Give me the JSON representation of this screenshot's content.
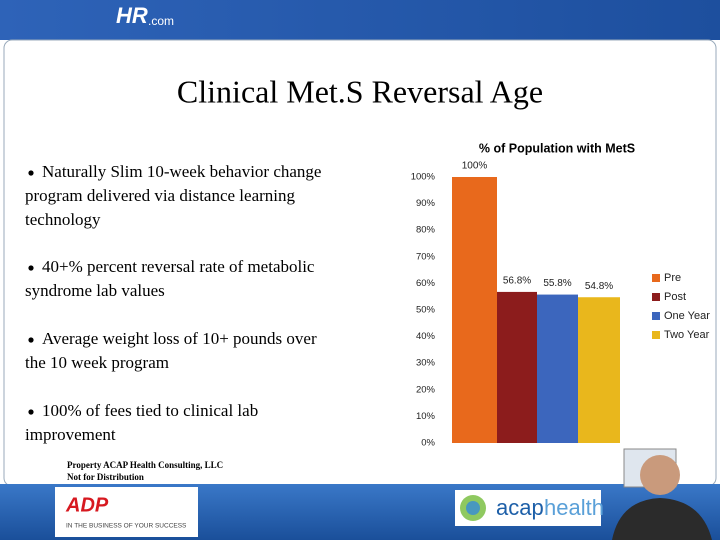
{
  "header": {
    "logo": "HR",
    "logo_suffix": ".com"
  },
  "slide": {
    "title": "Clinical Met.S Reversal Age",
    "bullets": [
      [
        "Naturally Slim 10-week behavior change",
        "program delivered via distance learning",
        "technology"
      ],
      [
        "40+% percent reversal rate of metabolic",
        "syndrome lab values"
      ],
      [
        "Average weight loss of 10+ pounds over",
        "the 10 week program"
      ],
      [
        "100% of fees tied to clinical lab",
        "improvement"
      ]
    ],
    "footnote": [
      "Property ACAP Health Consulting, LLC",
      "Not for Distribution"
    ]
  },
  "footer": {
    "adp_logo": "ADP",
    "adp_tagline": "IN THE BUSINESS OF YOUR SUCCESS",
    "acap_logo": "acap",
    "acap_logo_suffix": "health"
  },
  "chart_data": {
    "type": "bar",
    "title": "% of Population with MetS",
    "categories": [
      null
    ],
    "series": [
      {
        "name": "Pre",
        "color": "#e8691c",
        "values": [
          100
        ],
        "value_labels": [
          "100%"
        ]
      },
      {
        "name": "Post",
        "color": "#8c1c1c",
        "values": [
          56.8
        ],
        "value_labels": [
          "56.8%"
        ]
      },
      {
        "name": "One Year",
        "color": "#3c66bd",
        "values": [
          55.8
        ],
        "value_labels": [
          "55.8%"
        ]
      },
      {
        "name": "Two Year",
        "color": "#e9b71c",
        "values": [
          54.8
        ],
        "value_labels": [
          "54.8%"
        ]
      }
    ],
    "ylim": [
      0,
      100
    ],
    "yticks": [
      {
        "value": 0,
        "label": "0%"
      },
      {
        "value": 10,
        "label": "10%"
      },
      {
        "value": 20,
        "label": "20%"
      },
      {
        "value": 30,
        "label": "30%"
      },
      {
        "value": 40,
        "label": "40%"
      },
      {
        "value": 50,
        "label": "50%"
      },
      {
        "value": 60,
        "label": "60%"
      },
      {
        "value": 70,
        "label": "70%"
      },
      {
        "value": 80,
        "label": "80%"
      },
      {
        "value": 90,
        "label": "90%"
      },
      {
        "value": 100,
        "label": "100%"
      }
    ],
    "grid": false,
    "legend": "right"
  }
}
